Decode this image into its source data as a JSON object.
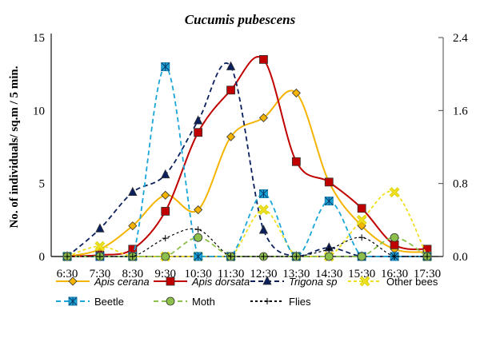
{
  "chart_data": {
    "type": "line",
    "title": "Cucumis pubescens",
    "ylabel": "No. of individuals/ sq.m / 5 min.",
    "ylim": [
      0,
      15
    ],
    "yticks": [
      0,
      5,
      10,
      15
    ],
    "y2lim": [
      0,
      2.4
    ],
    "y2ticks": [
      "0.0",
      "0.8",
      "1.6",
      "2.4"
    ],
    "categories": [
      "6:30",
      "7:30",
      "8:30",
      "9:30",
      "10:30",
      "11:30",
      "12:30",
      "13:30",
      "14:30",
      "15:30",
      "16:30",
      "17:30"
    ],
    "legend_position": "bottom",
    "grid": false,
    "series": [
      {
        "name": "Apis cerana",
        "italic": true,
        "color": "#f5b400",
        "dash": "",
        "marker": "diamond",
        "values": [
          0,
          0.5,
          2.1,
          4.2,
          3.2,
          8.2,
          9.5,
          11.2,
          5.1,
          2.1,
          0.5,
          0.3
        ]
      },
      {
        "name": "Apis dorsata",
        "italic": true,
        "color": "#c00000",
        "dash": "",
        "marker": "square",
        "values": [
          0,
          0.1,
          0.5,
          3.1,
          8.5,
          11.4,
          13.5,
          6.5,
          5.1,
          3.3,
          0.8,
          0.5
        ]
      },
      {
        "name": "Trigona sp",
        "italic": true,
        "color": "#0a1f5c",
        "dash": "6,4",
        "marker": "triangle",
        "values": [
          0,
          1.9,
          4.4,
          5.6,
          9.3,
          13.0,
          1.8,
          0,
          0.6,
          0,
          0,
          0
        ]
      },
      {
        "name": "Other bees",
        "italic": false,
        "color": "#f0e020",
        "dash": "4,3",
        "marker": "x",
        "values": [
          0,
          0.7,
          0,
          0,
          0,
          0,
          3.2,
          0,
          0,
          2.5,
          4.4,
          0
        ]
      },
      {
        "name": "Beetle",
        "italic": false,
        "color": "#1aa6d8",
        "dash": "6,4",
        "marker": "asterisk",
        "values": [
          0,
          0,
          0,
          13.0,
          0,
          0,
          4.3,
          0,
          3.8,
          0,
          0,
          0
        ]
      },
      {
        "name": "Moth",
        "italic": false,
        "color": "#8cc04a",
        "dash": "6,4",
        "marker": "circle",
        "values": [
          0,
          0,
          0,
          0,
          1.3,
          0,
          0,
          0,
          0,
          0,
          1.3,
          0
        ]
      },
      {
        "name": "Flies",
        "italic": false,
        "color": "#000000",
        "dash": "3,3",
        "marker": "plus",
        "values": [
          0,
          0,
          0,
          1.25,
          1.85,
          0,
          0,
          0,
          0.5,
          1.3,
          0,
          0
        ]
      }
    ]
  }
}
